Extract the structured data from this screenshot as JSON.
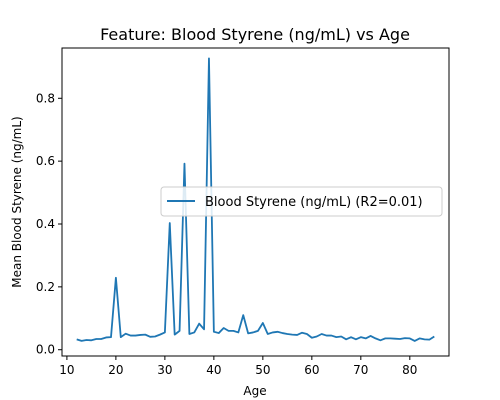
{
  "chart_data": {
    "type": "line",
    "title": "Feature: Blood Styrene (ng/mL) vs Age",
    "xlabel": "Age",
    "ylabel": "Mean Blood Styrene (ng/mL)",
    "xlim": [
      9,
      88
    ],
    "ylim": [
      -0.02,
      0.96
    ],
    "xticks": [
      10,
      20,
      30,
      40,
      50,
      60,
      70,
      80
    ],
    "yticks": [
      0.0,
      0.2,
      0.4,
      0.6,
      0.8
    ],
    "ytick_labels": [
      "0.0",
      "0.2",
      "0.4",
      "0.6",
      "0.8"
    ],
    "grid": false,
    "legend_position": "center-right",
    "series": [
      {
        "name": "Blood Styrene (ng/mL) (R2=0.01)",
        "color": "#1f77b4",
        "x": [
          12,
          13,
          14,
          15,
          16,
          17,
          18,
          19,
          20,
          21,
          22,
          23,
          24,
          25,
          26,
          27,
          28,
          29,
          30,
          31,
          32,
          33,
          34,
          35,
          36,
          37,
          38,
          39,
          40,
          41,
          42,
          43,
          44,
          45,
          46,
          47,
          48,
          49,
          50,
          51,
          52,
          53,
          54,
          55,
          56,
          57,
          58,
          59,
          60,
          61,
          62,
          63,
          64,
          65,
          66,
          67,
          68,
          69,
          70,
          71,
          72,
          73,
          74,
          75,
          76,
          77,
          78,
          79,
          80,
          81,
          82,
          83,
          84,
          85
        ],
        "y": [
          0.033,
          0.028,
          0.031,
          0.03,
          0.034,
          0.034,
          0.039,
          0.04,
          0.229,
          0.04,
          0.051,
          0.045,
          0.045,
          0.047,
          0.048,
          0.041,
          0.042,
          0.048,
          0.055,
          0.403,
          0.048,
          0.06,
          0.592,
          0.05,
          0.055,
          0.083,
          0.065,
          0.927,
          0.057,
          0.053,
          0.069,
          0.06,
          0.06,
          0.055,
          0.11,
          0.052,
          0.055,
          0.06,
          0.085,
          0.05,
          0.055,
          0.057,
          0.053,
          0.05,
          0.048,
          0.047,
          0.054,
          0.05,
          0.038,
          0.042,
          0.05,
          0.045,
          0.045,
          0.04,
          0.042,
          0.033,
          0.04,
          0.033,
          0.04,
          0.036,
          0.044,
          0.036,
          0.03,
          0.036,
          0.036,
          0.035,
          0.034,
          0.037,
          0.036,
          0.028,
          0.036,
          0.033,
          0.032,
          0.042
        ]
      }
    ]
  }
}
